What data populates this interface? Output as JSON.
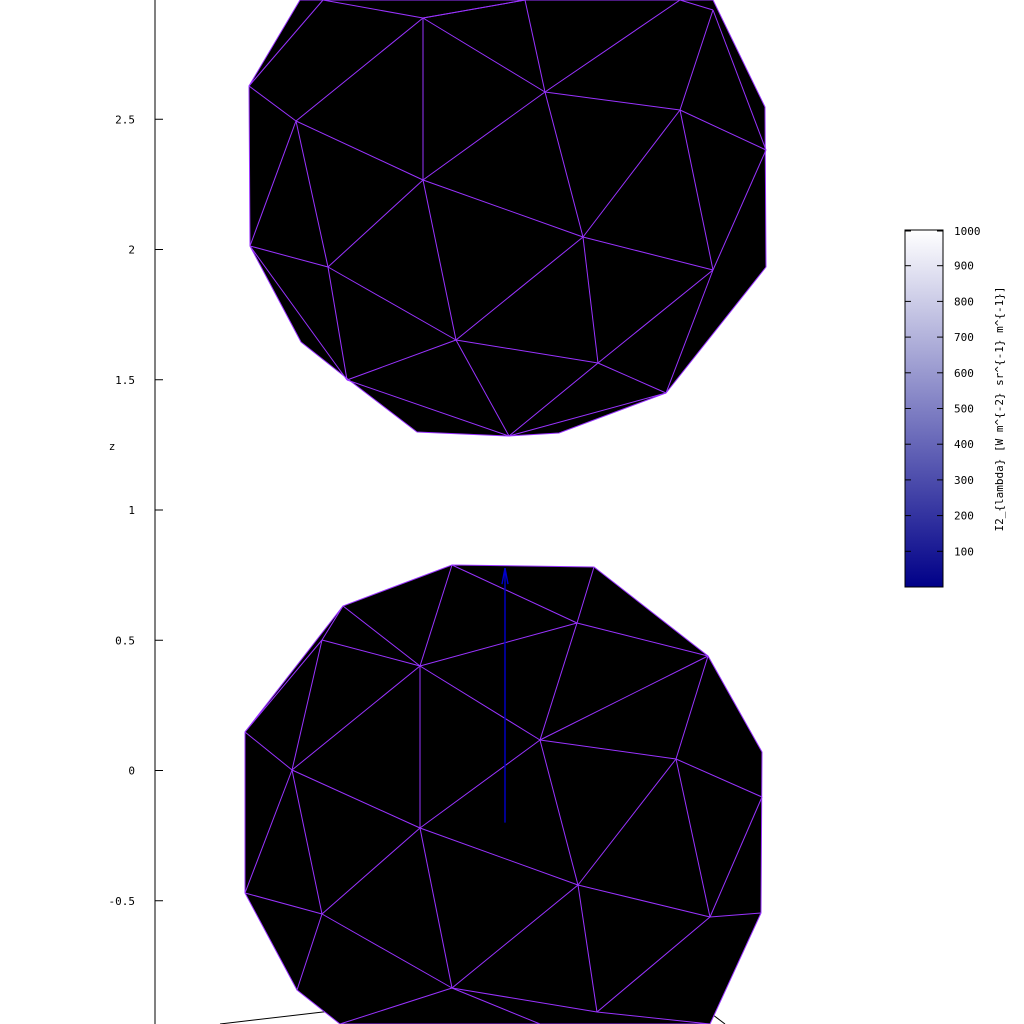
{
  "chart_data": {
    "type": "3d-surface",
    "z_axis": {
      "label": "z",
      "ticks": [
        "2.5",
        "2",
        "1.5",
        "1",
        "0.5",
        "0",
        "-0.5"
      ],
      "tick_values": [
        2.5,
        2,
        1.5,
        1,
        0.5,
        0,
        -0.5
      ]
    },
    "colorbar": {
      "label": "I2_{lambda} [W m^{-2} sr^{-1} m^{-1}]",
      "ticks": [
        "1000",
        "900",
        "800",
        "700",
        "600",
        "500",
        "400",
        "300",
        "200",
        "100"
      ],
      "tick_values": [
        1000,
        900,
        800,
        700,
        600,
        500,
        400,
        300,
        200,
        100
      ],
      "range": [
        0,
        1000
      ],
      "colors": [
        "#000088",
        "#ffffff"
      ]
    },
    "objects": [
      {
        "name": "upper sphere",
        "z_range": [
          1.3,
          3.0
        ],
        "fill": "#000000",
        "edge_color": "#9933ff"
      },
      {
        "name": "lower sphere",
        "z_range": [
          -1.0,
          0.8
        ],
        "fill": "#000000",
        "edge_color": "#9933ff"
      }
    ],
    "vector": {
      "from_z": -0.2,
      "to_z": 0.8,
      "color": "#0000cc"
    }
  }
}
